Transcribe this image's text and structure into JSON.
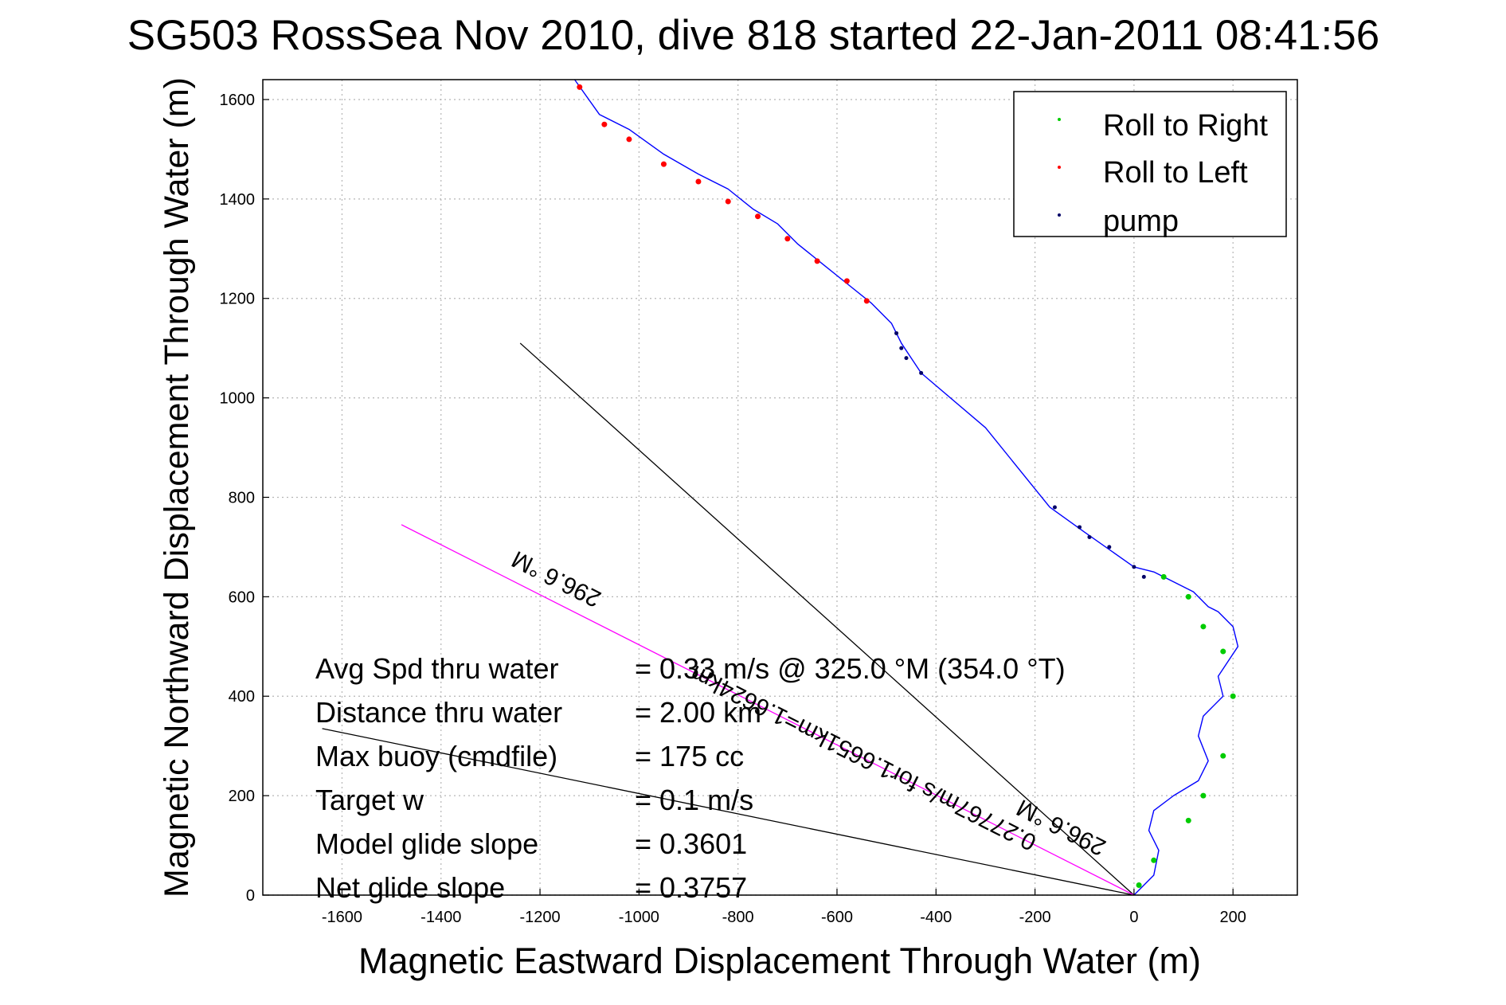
{
  "chart_data": {
    "type": "line",
    "title": "SG503 RossSea Nov 2010, dive 818 started 22-Jan-2011 08:41:56",
    "xlabel": "Magnetic Eastward Displacement Through Water (m)",
    "ylabel": "Magnetic Northward Displacement Through Water (m)",
    "xlim": [
      -1760,
      330
    ],
    "ylim": [
      0,
      1640
    ],
    "xticks": [
      -1600,
      -1400,
      -1200,
      -1000,
      -800,
      -600,
      -400,
      -200,
      0,
      200
    ],
    "yticks": [
      0,
      200,
      400,
      600,
      800,
      1000,
      1200,
      1400,
      1600
    ],
    "grid": true,
    "legend_position": "top-right",
    "legend": [
      {
        "label": "Roll to Right",
        "color": "#00cc00"
      },
      {
        "label": "Roll to Left",
        "color": "#ff0000"
      },
      {
        "label": "pump",
        "color": "#000066"
      }
    ],
    "track": {
      "name": "glider track",
      "color": "#0000ff",
      "x": [
        0,
        40,
        50,
        30,
        40,
        80,
        130,
        150,
        130,
        140,
        180,
        170,
        190,
        210,
        200,
        170,
        150,
        120,
        80,
        40,
        0,
        -100,
        -170,
        -300,
        -430,
        -470,
        -490,
        -530,
        -580,
        -630,
        -680,
        -720,
        -770,
        -820,
        -880,
        -950,
        -1020,
        -1080,
        -1130
      ],
      "y": [
        0,
        40,
        90,
        130,
        170,
        200,
        230,
        270,
        320,
        360,
        400,
        440,
        470,
        500,
        540,
        570,
        580,
        610,
        630,
        650,
        660,
        730,
        780,
        940,
        1050,
        1110,
        1150,
        1190,
        1230,
        1270,
        1310,
        1350,
        1380,
        1420,
        1450,
        1490,
        1540,
        1570,
        1640
      ]
    },
    "roll_right_points": {
      "x": [
        10,
        40,
        110,
        140,
        180,
        200,
        180,
        140,
        110,
        60
      ],
      "y": [
        20,
        70,
        150,
        200,
        280,
        400,
        490,
        540,
        600,
        640
      ]
    },
    "roll_left_points": {
      "x": [
        -540,
        -580,
        -640,
        -700,
        -760,
        -820,
        -880,
        -950,
        -1020,
        -1070,
        -1120
      ],
      "y": [
        1195,
        1235,
        1275,
        1320,
        1365,
        1395,
        1435,
        1470,
        1520,
        1550,
        1625
      ]
    },
    "pump_points": {
      "x": [
        -480,
        -470,
        -460,
        -430,
        -160,
        -110,
        -90,
        -50,
        0,
        20
      ],
      "y": [
        1130,
        1100,
        1080,
        1050,
        780,
        740,
        720,
        700,
        660,
        640
      ]
    },
    "reference_lines": [
      {
        "color": "#000000",
        "x": [
          0,
          -1240
        ],
        "y": [
          0,
          1110
        ]
      },
      {
        "color": "#000000",
        "x": [
          0,
          -1640
        ],
        "y": [
          0,
          335
        ]
      },
      {
        "color": "#ff00ff",
        "x": [
          0,
          -1480
        ],
        "y": [
          0,
          745
        ]
      }
    ],
    "annotations": [
      {
        "text": "296.6 °M",
        "x": -1160,
        "y": 650,
        "rotation": 206.7
      },
      {
        "text": "0.27767m/s for1.6651km=1.6624km",
        "x": -540,
        "y": 290,
        "rotation": 206.7
      },
      {
        "text": "296.6 °M",
        "x": -140,
        "y": 150,
        "rotation": 206.7
      }
    ],
    "stats": [
      {
        "label": "Avg Spd thru water",
        "value": "= 0.33 m/s @ 325.0 °M (354.0 °T)"
      },
      {
        "label": "Distance thru water",
        "value": "=  2.00 km"
      },
      {
        "label": "Max buoy (cmdfile)",
        "value": "= 175 cc"
      },
      {
        "label": "Target w",
        "value": "= 0.1 m/s"
      },
      {
        "label": "Model glide slope",
        "value": "= 0.3601"
      },
      {
        "label": "Net glide slope",
        "value": "= 0.3757"
      }
    ]
  }
}
